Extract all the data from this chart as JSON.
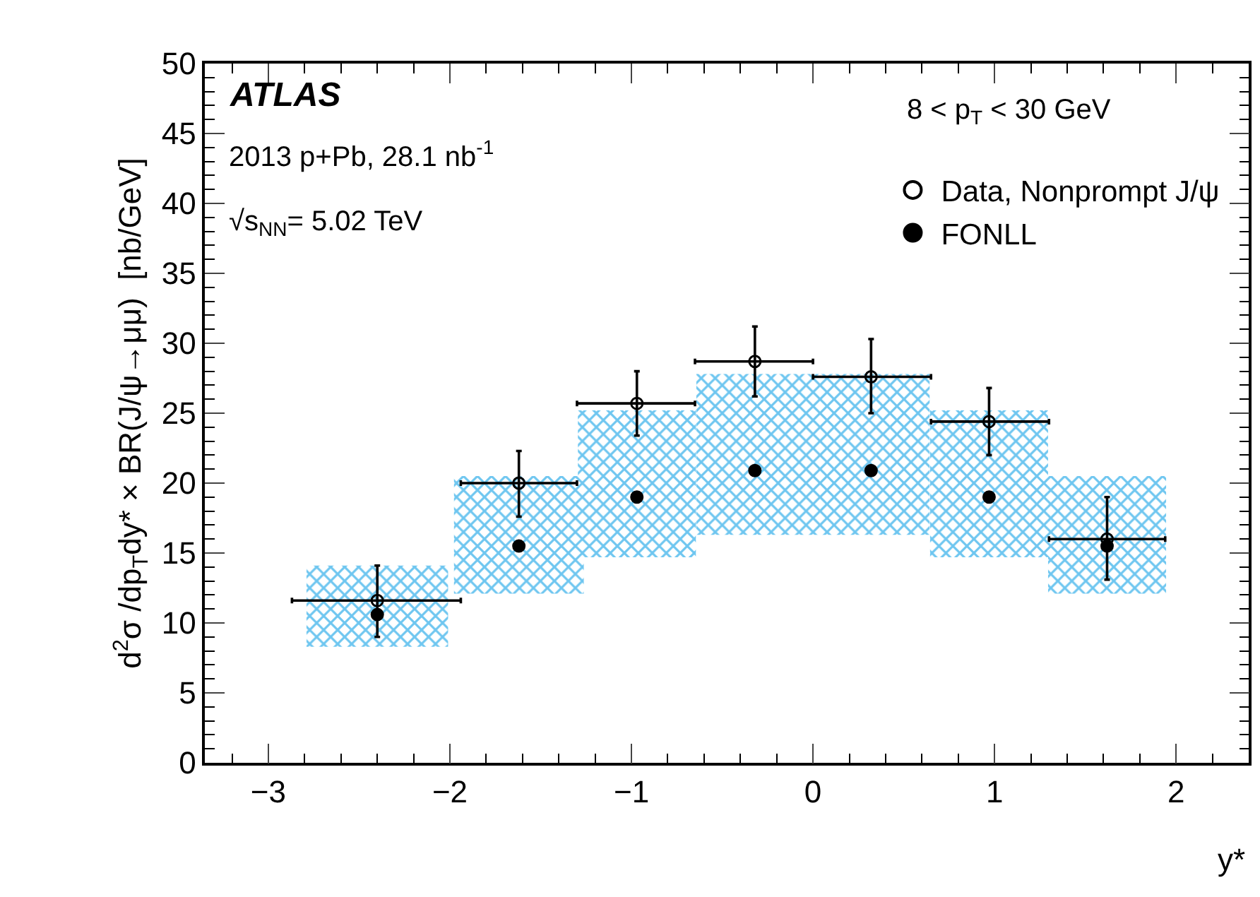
{
  "chart_data": {
    "type": "scatter",
    "xlabel": "y*",
    "ylabel": "d$^{2}$σ /dp$_{T}$dy* × BR(J/ψ→μμ)  [nb/GeV]",
    "x": [
      -2.4,
      -1.62,
      -0.97,
      -0.32,
      0.32,
      0.97,
      1.62
    ],
    "series": [
      {
        "type": "bar",
        "color": "#6ec6f0",
        "base": [
          8.3,
          12.1,
          14.7,
          16.3,
          16.3,
          14.7,
          12.1
        ],
        "values": [
          5.8,
          8.4,
          10.5,
          11.5,
          11.5,
          10.5,
          8.4
        ]
      },
      {
        "name": "FONLL",
        "color": "#000000",
        "marker": "circle",
        "values": [
          10.6,
          15.5,
          19.0,
          20.9,
          20.9,
          19.0,
          15.5
        ]
      },
      {
        "name": "Data, Nonprompt J/ψ",
        "color": "#000000",
        "marker": "circle-open",
        "values": [
          11.6,
          20.0,
          25.7,
          28.7,
          27.6,
          24.4,
          16.0
        ],
        "errors": [
          [
            9.0,
            14.1
          ],
          [
            17.6,
            22.3
          ],
          [
            23.4,
            28.0
          ],
          [
            26.2,
            31.2
          ],
          [
            25.0,
            30.3
          ],
          [
            22.0,
            26.8
          ],
          [
            13.1,
            19.0
          ]
        ],
        "xerrors": [
          [
            -2.87,
            -1.94
          ],
          [
            -1.94,
            -1.3
          ],
          [
            -1.3,
            -0.65
          ],
          [
            -0.65,
            0
          ],
          [
            0,
            0.65
          ],
          [
            0.65,
            1.3
          ],
          [
            1.3,
            1.94
          ]
        ]
      }
    ],
    "xlim": [
      -3.35,
      2.4
    ],
    "xticks": [
      -3,
      -2,
      -1,
      0,
      1,
      2
    ],
    "ylim": [
      0,
      50
    ],
    "yticks": [
      0,
      5,
      10,
      15,
      20,
      25,
      30,
      35,
      40,
      45,
      50
    ],
    "legend": "top right",
    "annotations": [
      "ATLAS",
      "2013 p+Pb, 28.1 nb$^{-1}$",
      "√s$_{NN}$= 5.02 TeV",
      "8 < p$_{T}$ < 30 GeV"
    ]
  }
}
